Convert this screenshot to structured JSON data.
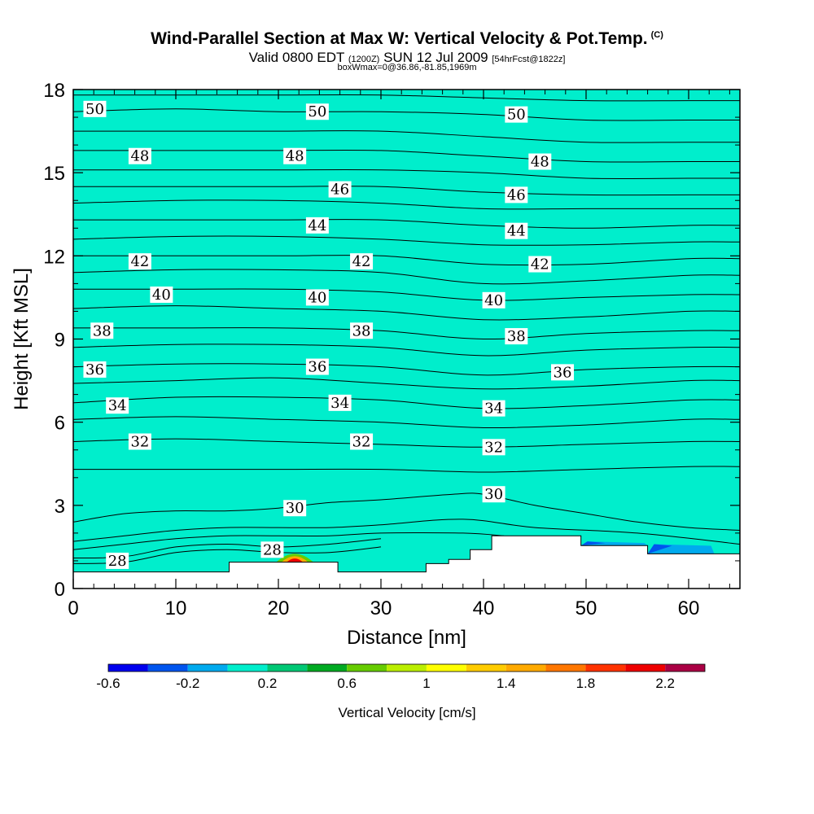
{
  "header": {
    "title": "Wind-Parallel Section at Max W: Vertical Velocity & Pot.Temp.",
    "title_tag": "(C)",
    "subtitle_main": "Valid 0800 EDT",
    "subtitle_utc": "(1200Z)",
    "subtitle_date": "SUN 12 Jul 2009",
    "subtitle_fcst": "[54hrFcst@1822z]",
    "note": "boxWmax=0@36.86,-81.85,1969m"
  },
  "chart_data": {
    "type": "contour",
    "xlabel": "Distance [nm]",
    "ylabel": "Height [Kft MSL]",
    "xlim": [
      0,
      65
    ],
    "ylim": [
      0,
      18
    ],
    "x_ticks": [
      0,
      10,
      20,
      30,
      40,
      50,
      60
    ],
    "y_ticks": [
      0,
      3,
      6,
      9,
      12,
      15,
      18
    ],
    "fill_color_dominant": "#00eecc",
    "isentropes": [
      {
        "theta": 28,
        "pts": [
          [
            0,
            0.9
          ],
          [
            5,
            0.95
          ],
          [
            10,
            1.3
          ],
          [
            15,
            1.4
          ],
          [
            20,
            1.3
          ],
          [
            25,
            1.3
          ],
          [
            30,
            1.5
          ]
        ]
      },
      {
        "theta": 28.5,
        "pts": [
          [
            0,
            1.1
          ],
          [
            5,
            1.15
          ],
          [
            10,
            1.5
          ],
          [
            15,
            1.6
          ],
          [
            20,
            1.5
          ],
          [
            25,
            1.6
          ],
          [
            30,
            1.8
          ]
        ]
      },
      {
        "theta": 29,
        "pts": [
          [
            0,
            1.4
          ],
          [
            5,
            1.6
          ],
          [
            10,
            1.8
          ],
          [
            15,
            1.9
          ],
          [
            20,
            1.9
          ],
          [
            25,
            1.9
          ],
          [
            30,
            2.0
          ],
          [
            38,
            2.0
          ],
          [
            42,
            1.9
          ]
        ]
      },
      {
        "theta": 29.5,
        "pts": [
          [
            0,
            1.7
          ],
          [
            5,
            1.9
          ],
          [
            10,
            2.1
          ],
          [
            15,
            2.2
          ],
          [
            20,
            2.2
          ],
          [
            25,
            2.2
          ],
          [
            30,
            2.3
          ],
          [
            38,
            2.5
          ],
          [
            45,
            2.2
          ],
          [
            55,
            2.0
          ],
          [
            65,
            1.6
          ]
        ]
      },
      {
        "theta": 30,
        "pts": [
          [
            0,
            2.4
          ],
          [
            5,
            2.7
          ],
          [
            10,
            2.8
          ],
          [
            15,
            2.8
          ],
          [
            20,
            2.9
          ],
          [
            25,
            3.1
          ],
          [
            30,
            3.2
          ],
          [
            37,
            3.4
          ],
          [
            40,
            3.4
          ],
          [
            45,
            3.0
          ],
          [
            50,
            2.7
          ],
          [
            55,
            2.4
          ],
          [
            60,
            2.2
          ],
          [
            65,
            2.1
          ]
        ]
      },
      {
        "theta": 31,
        "pts": [
          [
            0,
            4.3
          ],
          [
            10,
            4.3
          ],
          [
            20,
            4.3
          ],
          [
            30,
            4.3
          ],
          [
            40,
            4.2
          ],
          [
            50,
            4.3
          ],
          [
            60,
            4.4
          ],
          [
            65,
            4.4
          ]
        ]
      },
      {
        "theta": 32,
        "pts": [
          [
            0,
            5.3
          ],
          [
            10,
            5.4
          ],
          [
            20,
            5.3
          ],
          [
            30,
            5.2
          ],
          [
            40,
            5.1
          ],
          [
            50,
            5.2
          ],
          [
            60,
            5.3
          ],
          [
            65,
            5.3
          ]
        ]
      },
      {
        "theta": 33,
        "pts": [
          [
            0,
            6.1
          ],
          [
            10,
            6.2
          ],
          [
            20,
            6.1
          ],
          [
            30,
            6.0
          ],
          [
            40,
            5.8
          ],
          [
            50,
            5.9
          ],
          [
            60,
            6.1
          ],
          [
            65,
            6.1
          ]
        ]
      },
      {
        "theta": 34,
        "pts": [
          [
            0,
            6.7
          ],
          [
            10,
            6.9
          ],
          [
            20,
            6.9
          ],
          [
            30,
            6.8
          ],
          [
            40,
            6.5
          ],
          [
            50,
            6.6
          ],
          [
            60,
            6.8
          ],
          [
            65,
            6.8
          ]
        ]
      },
      {
        "theta": 35,
        "pts": [
          [
            0,
            7.4
          ],
          [
            10,
            7.5
          ],
          [
            20,
            7.6
          ],
          [
            30,
            7.4
          ],
          [
            40,
            7.2
          ],
          [
            50,
            7.3
          ],
          [
            60,
            7.5
          ],
          [
            65,
            7.5
          ]
        ]
      },
      {
        "theta": 36,
        "pts": [
          [
            0,
            8.0
          ],
          [
            10,
            8.1
          ],
          [
            20,
            8.1
          ],
          [
            30,
            8.0
          ],
          [
            40,
            7.7
          ],
          [
            50,
            7.9
          ],
          [
            60,
            8.0
          ],
          [
            65,
            8.0
          ]
        ]
      },
      {
        "theta": 37,
        "pts": [
          [
            0,
            8.7
          ],
          [
            10,
            8.8
          ],
          [
            20,
            8.8
          ],
          [
            30,
            8.7
          ],
          [
            40,
            8.4
          ],
          [
            50,
            8.6
          ],
          [
            60,
            8.7
          ],
          [
            65,
            8.7
          ]
        ]
      },
      {
        "theta": 38,
        "pts": [
          [
            0,
            9.4
          ],
          [
            10,
            9.4
          ],
          [
            20,
            9.4
          ],
          [
            30,
            9.3
          ],
          [
            40,
            9.0
          ],
          [
            50,
            9.2
          ],
          [
            60,
            9.3
          ],
          [
            65,
            9.3
          ]
        ]
      },
      {
        "theta": 39,
        "pts": [
          [
            0,
            10.1
          ],
          [
            10,
            10.2
          ],
          [
            20,
            10.1
          ],
          [
            30,
            10.0
          ],
          [
            40,
            9.7
          ],
          [
            50,
            9.8
          ],
          [
            60,
            10.0
          ],
          [
            65,
            10.0
          ]
        ]
      },
      {
        "theta": 40,
        "pts": [
          [
            0,
            10.8
          ],
          [
            10,
            10.8
          ],
          [
            20,
            10.8
          ],
          [
            30,
            10.7
          ],
          [
            40,
            10.4
          ],
          [
            50,
            10.5
          ],
          [
            60,
            10.6
          ],
          [
            65,
            10.6
          ]
        ]
      },
      {
        "theta": 41,
        "pts": [
          [
            0,
            11.4
          ],
          [
            10,
            11.5
          ],
          [
            20,
            11.5
          ],
          [
            30,
            11.4
          ],
          [
            40,
            11.0
          ],
          [
            50,
            11.1
          ],
          [
            60,
            11.3
          ],
          [
            65,
            11.3
          ]
        ]
      },
      {
        "theta": 42,
        "pts": [
          [
            0,
            12.0
          ],
          [
            10,
            12.0
          ],
          [
            20,
            12.0
          ],
          [
            30,
            12.0
          ],
          [
            40,
            11.7
          ],
          [
            50,
            11.7
          ],
          [
            60,
            11.9
          ],
          [
            65,
            11.9
          ]
        ]
      },
      {
        "theta": 43,
        "pts": [
          [
            0,
            12.6
          ],
          [
            10,
            12.7
          ],
          [
            20,
            12.7
          ],
          [
            30,
            12.6
          ],
          [
            40,
            12.4
          ],
          [
            50,
            12.4
          ],
          [
            60,
            12.5
          ],
          [
            65,
            12.5
          ]
        ]
      },
      {
        "theta": 44,
        "pts": [
          [
            0,
            13.3
          ],
          [
            10,
            13.3
          ],
          [
            20,
            13.3
          ],
          [
            30,
            13.3
          ],
          [
            40,
            13.1
          ],
          [
            50,
            13.0
          ],
          [
            60,
            13.1
          ],
          [
            65,
            13.1
          ]
        ]
      },
      {
        "theta": 45,
        "pts": [
          [
            0,
            13.9
          ],
          [
            10,
            14.0
          ],
          [
            20,
            14.0
          ],
          [
            30,
            13.9
          ],
          [
            40,
            13.7
          ],
          [
            50,
            13.7
          ],
          [
            60,
            13.7
          ],
          [
            65,
            13.7
          ]
        ]
      },
      {
        "theta": 46,
        "pts": [
          [
            0,
            14.5
          ],
          [
            10,
            14.5
          ],
          [
            20,
            14.5
          ],
          [
            30,
            14.5
          ],
          [
            40,
            14.3
          ],
          [
            50,
            14.2
          ],
          [
            60,
            14.2
          ],
          [
            65,
            14.2
          ]
        ]
      },
      {
        "theta": 47,
        "pts": [
          [
            0,
            15.1
          ],
          [
            10,
            15.1
          ],
          [
            20,
            15.1
          ],
          [
            30,
            15.1
          ],
          [
            40,
            15.0
          ],
          [
            50,
            14.8
          ],
          [
            60,
            14.8
          ],
          [
            65,
            14.8
          ]
        ]
      },
      {
        "theta": 48,
        "pts": [
          [
            0,
            15.8
          ],
          [
            10,
            15.8
          ],
          [
            20,
            15.8
          ],
          [
            30,
            15.8
          ],
          [
            40,
            15.6
          ],
          [
            50,
            15.4
          ],
          [
            60,
            15.4
          ],
          [
            65,
            15.4
          ]
        ]
      },
      {
        "theta": 49,
        "pts": [
          [
            0,
            16.5
          ],
          [
            10,
            16.5
          ],
          [
            20,
            16.5
          ],
          [
            30,
            16.5
          ],
          [
            40,
            16.3
          ],
          [
            50,
            16.1
          ],
          [
            60,
            16.1
          ],
          [
            65,
            16.1
          ]
        ]
      },
      {
        "theta": 50,
        "pts": [
          [
            0,
            17.2
          ],
          [
            10,
            17.3
          ],
          [
            20,
            17.2
          ],
          [
            30,
            17.2
          ],
          [
            40,
            17.1
          ],
          [
            50,
            16.9
          ],
          [
            60,
            16.9
          ],
          [
            65,
            16.9
          ]
        ]
      },
      {
        "theta": 51,
        "pts": [
          [
            0,
            17.8
          ],
          [
            10,
            17.8
          ],
          [
            20,
            17.8
          ],
          [
            30,
            17.8
          ],
          [
            40,
            17.7
          ],
          [
            50,
            17.6
          ],
          [
            60,
            17.6
          ],
          [
            65,
            17.6
          ]
        ]
      }
    ],
    "contour_labels": [
      {
        "text": "50",
        "x": 2.1,
        "y": 17.3
      },
      {
        "text": "50",
        "x": 23.8,
        "y": 17.2
      },
      {
        "text": "50",
        "x": 43.2,
        "y": 17.1
      },
      {
        "text": "48",
        "x": 6.5,
        "y": 15.6
      },
      {
        "text": "48",
        "x": 21.6,
        "y": 15.6
      },
      {
        "text": "48",
        "x": 45.5,
        "y": 15.4
      },
      {
        "text": "46",
        "x": 26.0,
        "y": 14.4
      },
      {
        "text": "46",
        "x": 43.2,
        "y": 14.2
      },
      {
        "text": "44",
        "x": 23.8,
        "y": 13.1
      },
      {
        "text": "44",
        "x": 43.2,
        "y": 12.9
      },
      {
        "text": "42",
        "x": 6.5,
        "y": 11.8
      },
      {
        "text": "42",
        "x": 28.1,
        "y": 11.8
      },
      {
        "text": "42",
        "x": 45.5,
        "y": 11.7
      },
      {
        "text": "40",
        "x": 8.6,
        "y": 10.6
      },
      {
        "text": "40",
        "x": 23.8,
        "y": 10.5
      },
      {
        "text": "40",
        "x": 41.0,
        "y": 10.4
      },
      {
        "text": "38",
        "x": 2.8,
        "y": 9.3
      },
      {
        "text": "38",
        "x": 28.1,
        "y": 9.3
      },
      {
        "text": "38",
        "x": 43.2,
        "y": 9.1
      },
      {
        "text": "36",
        "x": 2.1,
        "y": 7.9
      },
      {
        "text": "36",
        "x": 23.8,
        "y": 8.0
      },
      {
        "text": "36",
        "x": 47.7,
        "y": 7.8
      },
      {
        "text": "34",
        "x": 4.3,
        "y": 6.6
      },
      {
        "text": "34",
        "x": 26.0,
        "y": 6.7
      },
      {
        "text": "34",
        "x": 41.0,
        "y": 6.5
      },
      {
        "text": "32",
        "x": 6.5,
        "y": 5.3
      },
      {
        "text": "32",
        "x": 28.1,
        "y": 5.3
      },
      {
        "text": "32",
        "x": 41.0,
        "y": 5.1
      },
      {
        "text": "30",
        "x": 21.6,
        "y": 2.9
      },
      {
        "text": "30",
        "x": 41.0,
        "y": 3.4
      },
      {
        "text": "28",
        "x": 4.3,
        "y": 1.0
      },
      {
        "text": "28",
        "x": 19.4,
        "y": 1.4
      }
    ],
    "terrain": [
      [
        0,
        0.6
      ],
      [
        15.2,
        0.6
      ],
      [
        15.2,
        0.95
      ],
      [
        25.8,
        0.95
      ],
      [
        25.8,
        0.6
      ],
      [
        34.4,
        0.6
      ],
      [
        34.4,
        0.9
      ],
      [
        36.6,
        0.9
      ],
      [
        36.6,
        1.05
      ],
      [
        38.7,
        1.05
      ],
      [
        38.7,
        1.4
      ],
      [
        40.8,
        1.4
      ],
      [
        40.8,
        1.9
      ],
      [
        49.5,
        1.9
      ],
      [
        49.5,
        1.55
      ],
      [
        56,
        1.55
      ],
      [
        56,
        1.25
      ],
      [
        65,
        1.25
      ]
    ],
    "w_patches": [
      {
        "shape": "bump",
        "x": 21.6,
        "y": 0.95,
        "half_width": 1.8,
        "height": 0.3,
        "w": [
          0.6,
          1.4,
          2.0
        ]
      },
      {
        "shape": "band",
        "x0": 49.5,
        "x1": 56,
        "y": 1.55,
        "thickness": 0.15,
        "w": -0.2
      },
      {
        "shape": "band",
        "x0": 56,
        "x1": 62.5,
        "y": 1.25,
        "thickness": 0.35,
        "w": -0.2
      }
    ],
    "colorbar": {
      "label": "Vertical Velocity [cm/s]",
      "colors": [
        "#0000ee",
        "#0055ee",
        "#00aaee",
        "#00eecc",
        "#00c875",
        "#00aa22",
        "#66cc00",
        "#bbee00",
        "#ffff00",
        "#ffcc00",
        "#ffaa00",
        "#ff7700",
        "#ff3300",
        "#ee0000",
        "#aa0044"
      ],
      "tick_labels": [
        "-0.6",
        "-0.2",
        "0.2",
        "0.6",
        "1",
        "1.4",
        "1.8",
        "2.2"
      ]
    }
  }
}
